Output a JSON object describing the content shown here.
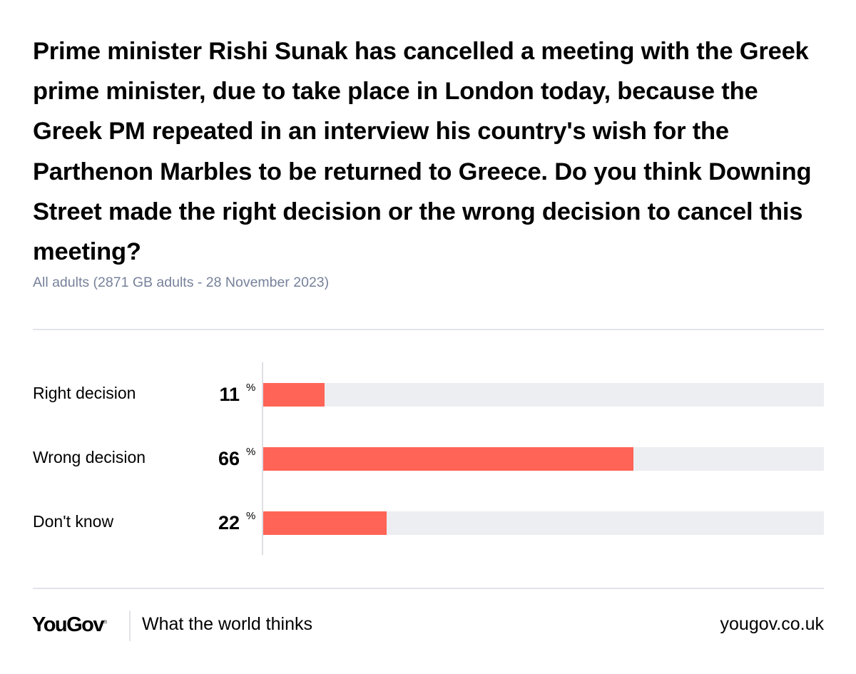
{
  "title": "Prime minister Rishi Sunak has cancelled a meeting with the Greek prime minister, due to take place in London today, because the Greek PM repeated in an interview his country's wish for the Parthenon Marbles to be returned to Greece. Do you think Downing Street made the right decision or the wrong decision to cancel this meeting?",
  "subtitle": "All adults (2871 GB adults - 28 November 2023)",
  "chart_data": {
    "type": "bar",
    "orientation": "horizontal",
    "categories": [
      "Right decision",
      "Wrong decision",
      "Don't know"
    ],
    "values": [
      11,
      66,
      22
    ],
    "unit": "%",
    "xlim": [
      0,
      100
    ],
    "grid": false,
    "bar_color": "#ff6456",
    "track_color": "#edeef2"
  },
  "footer": {
    "logo": "YouGov",
    "tagline": "What the world thinks",
    "website": "yougov.co.uk"
  }
}
